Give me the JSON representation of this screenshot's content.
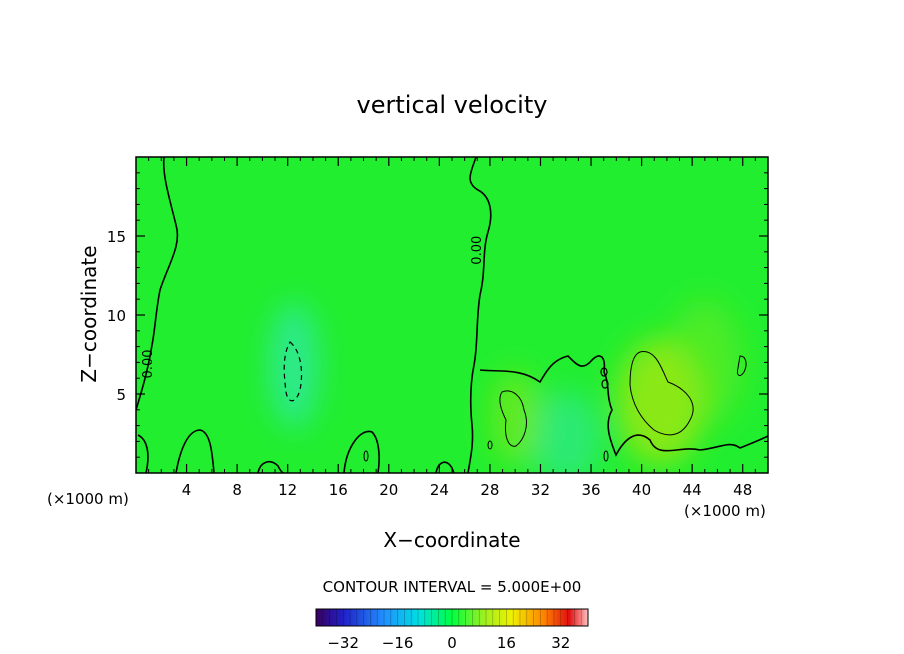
{
  "chart_data": {
    "type": "heatmap",
    "title": "vertical velocity",
    "xlabel": "X−coordinate",
    "ylabel": "Z−coordinate",
    "x_unit_left": "(×1000 m)",
    "x_unit_right": "(×1000 m)",
    "xlim": [
      0,
      50
    ],
    "ylim": [
      0,
      20
    ],
    "x_ticks": [
      4,
      8,
      12,
      16,
      20,
      24,
      28,
      32,
      36,
      40,
      44,
      48
    ],
    "y_ticks": [
      5,
      10,
      15
    ],
    "contour_interval_text": "CONTOUR INTERVAL = 5.000E+00",
    "contour_labels": [
      {
        "text": "0.00",
        "x": 1.0,
        "z": 6.9
      },
      {
        "text": "0.00",
        "x": 27.0,
        "z": 14.1
      }
    ],
    "colorbar": {
      "min": -40,
      "max": 40,
      "ticks": [
        -32,
        -16,
        0,
        16,
        32
      ]
    },
    "features": [
      {
        "kind": "negative",
        "cx": 12.5,
        "cz": 6.8,
        "rx": 2.0,
        "rz": 4.0,
        "value": -4
      },
      {
        "kind": "negative",
        "cx": 34,
        "cz": 2.2,
        "rx": 2.8,
        "rz": 3.0,
        "value": -3
      },
      {
        "kind": "positive",
        "cx": 41.5,
        "cz": 4.5,
        "rx": 3.5,
        "rz": 4.0,
        "value": 5
      },
      {
        "kind": "positive",
        "cx": 30,
        "cz": 3.5,
        "rx": 2.0,
        "rz": 3.0,
        "value": 3
      },
      {
        "kind": "positive",
        "cx": 45,
        "cz": 7.0,
        "rx": 3.0,
        "rz": 4.0,
        "value": 2
      }
    ]
  }
}
